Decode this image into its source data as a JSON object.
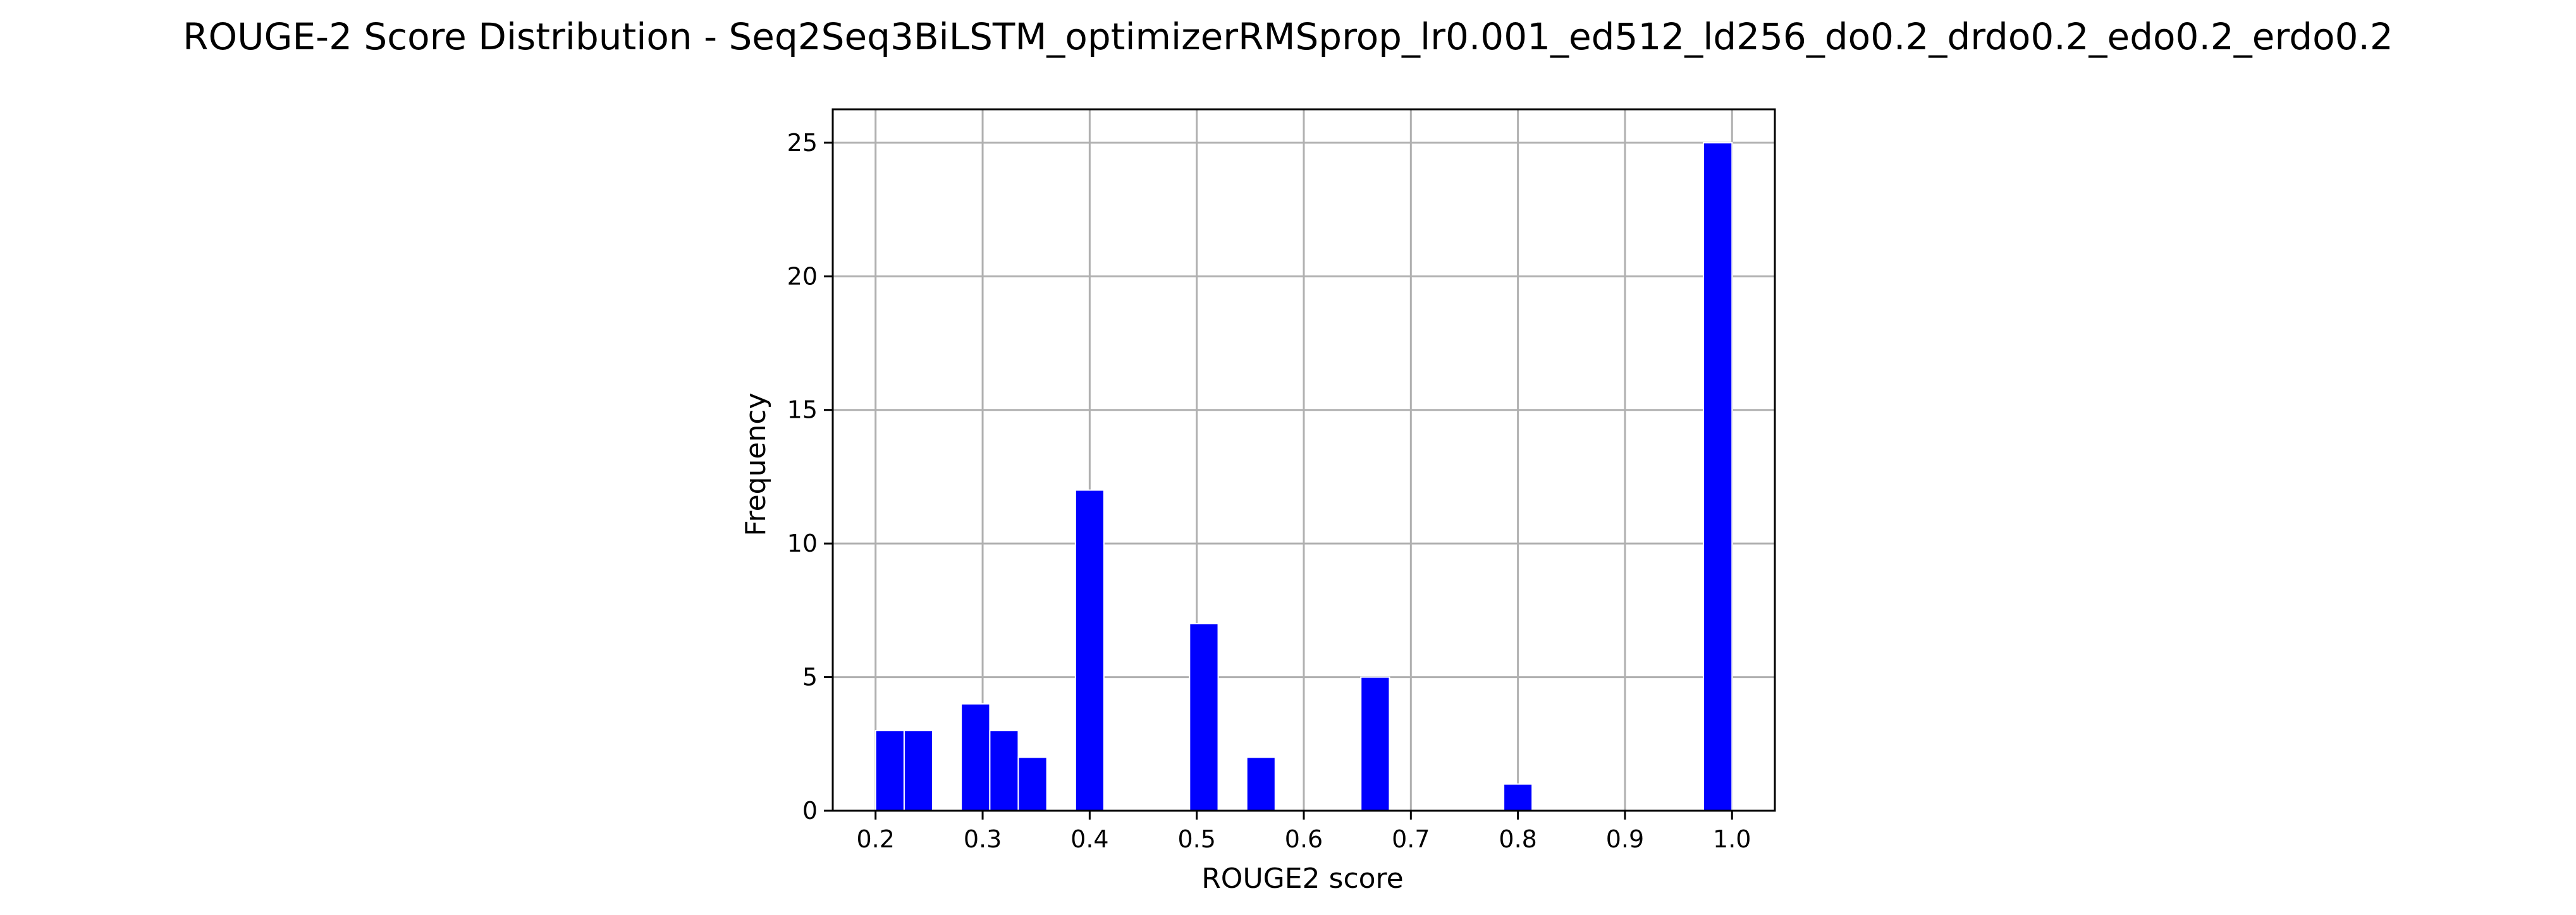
{
  "chart_data": {
    "type": "bar",
    "title": "ROUGE-2 Score Distribution - Seq2Seq3BiLSTM_optimizerRMSprop_lr0.001_ed512_ld256_do0.2_drdo0.2_edo0.2_erdo0.2",
    "xlabel": "ROUGE2 score",
    "ylabel": "Frequency",
    "xlim": [
      0.16,
      1.04
    ],
    "ylim": [
      0,
      26.25
    ],
    "grid": true,
    "bar_color": "#0000ff",
    "x_ticks": [
      "0.2",
      "0.3",
      "0.4",
      "0.5",
      "0.6",
      "0.7",
      "0.8",
      "0.9",
      "1.0"
    ],
    "y_ticks": [
      "0",
      "5",
      "10",
      "15",
      "20",
      "25"
    ],
    "bins": [
      {
        "start": 0.2,
        "end": 0.2267,
        "count": 3
      },
      {
        "start": 0.2267,
        "end": 0.2533,
        "count": 3
      },
      {
        "start": 0.28,
        "end": 0.3067,
        "count": 4
      },
      {
        "start": 0.3067,
        "end": 0.3333,
        "count": 3
      },
      {
        "start": 0.3333,
        "end": 0.36,
        "count": 2
      },
      {
        "start": 0.3867,
        "end": 0.4133,
        "count": 12
      },
      {
        "start": 0.4933,
        "end": 0.52,
        "count": 7
      },
      {
        "start": 0.5467,
        "end": 0.5733,
        "count": 2
      },
      {
        "start": 0.6533,
        "end": 0.68,
        "count": 5
      },
      {
        "start": 0.7867,
        "end": 0.8133,
        "count": 1
      },
      {
        "start": 0.9733,
        "end": 1.0,
        "count": 25
      }
    ]
  }
}
